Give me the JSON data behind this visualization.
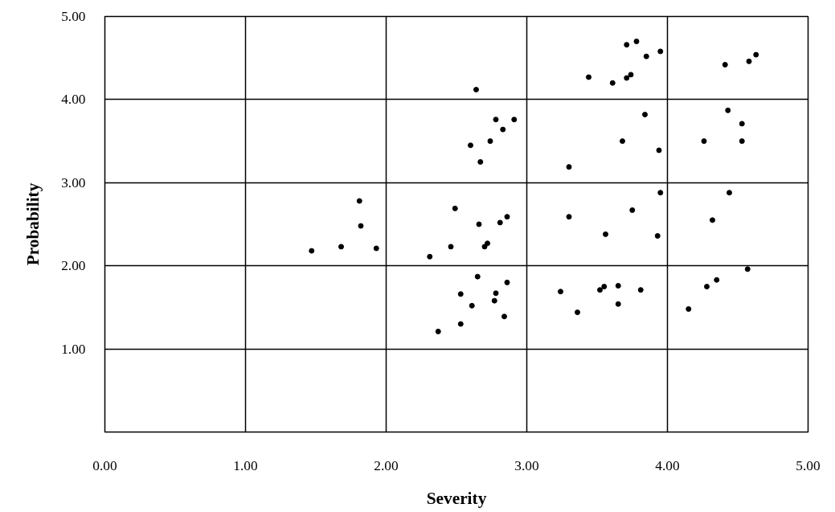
{
  "chart_data": {
    "type": "scatter",
    "xlabel": "Severity",
    "ylabel": "Probability",
    "xlim": [
      0,
      5
    ],
    "ylim": [
      0,
      5
    ],
    "xticks": [
      {
        "value": 0,
        "label": "0.00"
      },
      {
        "value": 1,
        "label": "1.00"
      },
      {
        "value": 2,
        "label": "2.00"
      },
      {
        "value": 3,
        "label": "3.00"
      },
      {
        "value": 4,
        "label": "4.00"
      },
      {
        "value": 5,
        "label": "5.00"
      }
    ],
    "yticks": [
      {
        "value": 1,
        "label": "1.00"
      },
      {
        "value": 2,
        "label": "2.00"
      },
      {
        "value": 3,
        "label": "3.00"
      },
      {
        "value": 4,
        "label": "4.00"
      },
      {
        "value": 5,
        "label": "5.00"
      }
    ],
    "grid": true,
    "marker": "circle",
    "series": [
      {
        "color": "#000000",
        "x": [
          1.47,
          1.68,
          1.81,
          1.82,
          1.93,
          2.64,
          2.78,
          2.91,
          2.83,
          2.74,
          2.6,
          2.67,
          2.49,
          2.86,
          2.81,
          2.66,
          2.72,
          2.7,
          2.46,
          2.31,
          2.65,
          2.86,
          2.53,
          2.78,
          2.77,
          2.61,
          2.84,
          2.53,
          2.37,
          3.78,
          3.71,
          3.95,
          3.85,
          3.44,
          3.61,
          3.74,
          3.71,
          4.41,
          4.58,
          4.63,
          3.84,
          3.68,
          3.94,
          3.3,
          4.43,
          4.53,
          4.26,
          4.53,
          3.95,
          3.3,
          3.75,
          3.56,
          3.93,
          4.44,
          4.32,
          4.57,
          4.35,
          4.28,
          4.15,
          3.24,
          3.55,
          3.52,
          3.65,
          3.81,
          3.65,
          3.36
        ],
        "values": [
          2.18,
          2.23,
          2.78,
          2.48,
          2.21,
          4.12,
          3.76,
          3.76,
          3.64,
          3.5,
          3.45,
          3.25,
          2.69,
          2.59,
          2.52,
          2.5,
          2.27,
          2.23,
          2.23,
          2.11,
          1.87,
          1.8,
          1.66,
          1.67,
          1.58,
          1.52,
          1.39,
          1.3,
          1.21,
          4.7,
          4.66,
          4.58,
          4.52,
          4.27,
          4.2,
          4.3,
          4.26,
          4.42,
          4.46,
          4.54,
          3.82,
          3.5,
          3.39,
          3.19,
          3.87,
          3.71,
          3.5,
          3.5,
          2.88,
          2.59,
          2.67,
          2.38,
          2.36,
          2.88,
          2.55,
          1.96,
          1.83,
          1.75,
          1.48,
          1.69,
          1.75,
          1.71,
          1.76,
          1.71,
          1.54,
          1.44
        ]
      }
    ]
  }
}
